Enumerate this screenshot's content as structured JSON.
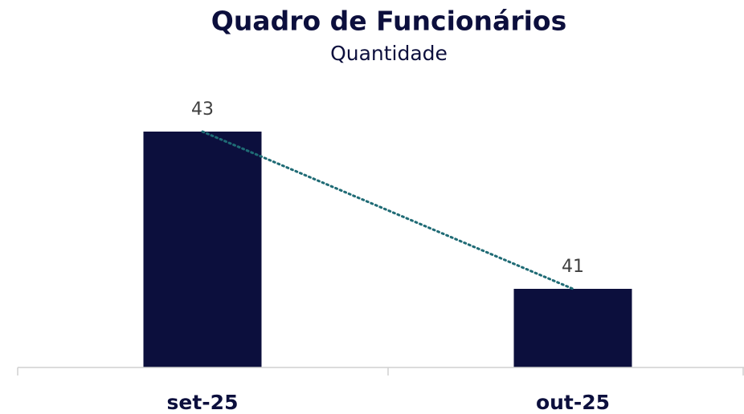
{
  "chart_data": {
    "type": "bar",
    "title": "Quadro de Funcionários",
    "subtitle": "Quantidade",
    "categories": [
      "set-25",
      "out-25"
    ],
    "values": [
      43,
      41
    ],
    "color": "#0c0f3d",
    "ylim": [
      40,
      44
    ],
    "trendline": true,
    "trendline_color": "#1f6b75"
  }
}
